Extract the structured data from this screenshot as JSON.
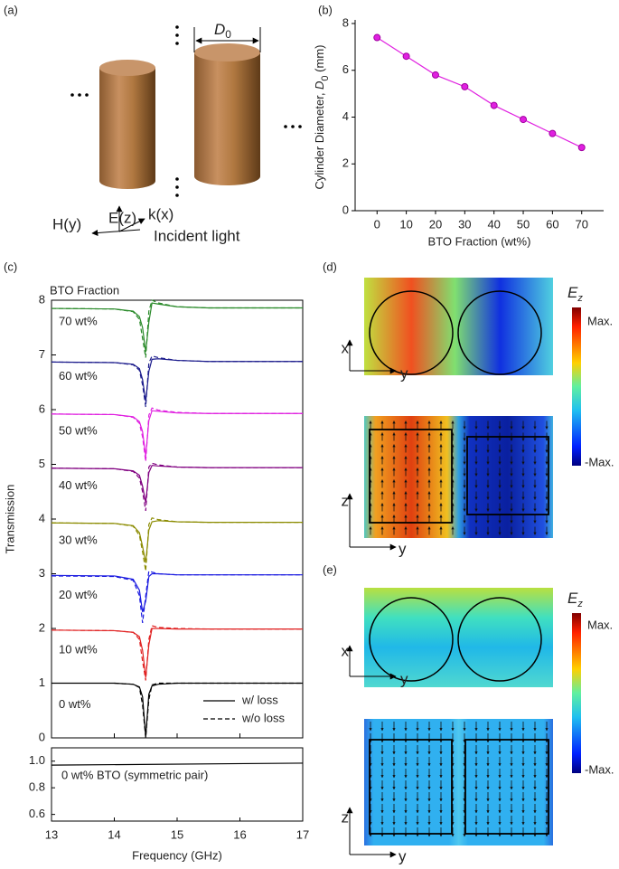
{
  "panel_labels": [
    "(a)",
    "(b)",
    "(c)",
    "(d)",
    "(e)"
  ],
  "diagram": {
    "diameter": [
      "D",
      "0"
    ],
    "e_field": "E(z)",
    "k_vector": "k(x)",
    "h_field": "H(y)",
    "caption": "Incident light"
  },
  "field_maps": {
    "colorbar_title": [
      "E",
      "z"
    ],
    "max": "Max.",
    "min": "-Max.",
    "axes_top": [
      "x",
      "y"
    ],
    "axes_bottom": [
      "z",
      "y"
    ]
  },
  "chart_data": [
    {
      "type": "line",
      "x": [
        0,
        10,
        20,
        30,
        40,
        50,
        60,
        70
      ],
      "values": [
        7.4,
        6.6,
        5.8,
        5.3,
        4.5,
        3.9,
        3.3,
        2.7
      ],
      "color": "#e020e0",
      "markers": true,
      "xlim": [
        -7.5,
        77.5
      ],
      "xticks": [
        0,
        10,
        20,
        30,
        40,
        50,
        60,
        70
      ],
      "ylim": [
        0,
        8
      ],
      "yticks": [
        0,
        2,
        4,
        6,
        8
      ],
      "xlabel": "BTO Fraction (wt%)",
      "ylabel": [
        "Cylinder Diameter, ",
        "D",
        "0",
        " (mm)"
      ]
    },
    {
      "type": "line",
      "legend_title": "BTO Fraction",
      "legend": [
        "w/ loss",
        "w/o loss"
      ],
      "ylabel": "Transmission",
      "x": [
        13,
        14,
        14.3,
        14.4,
        14.45,
        14.5,
        14.55,
        14.6,
        14.7,
        15,
        15.5,
        17
      ],
      "xlim": [
        13,
        17
      ],
      "xticks": [
        13,
        14,
        15,
        16,
        17
      ],
      "ylim": [
        0,
        8
      ],
      "yticks": [
        0,
        1,
        2,
        3,
        4,
        5,
        6,
        7,
        8
      ],
      "series": [
        {
          "name": "0 wt%",
          "color": "#000000",
          "values": [
            1,
            1,
            0.98,
            0.93,
            0.75,
            0.02,
            0.8,
            0.95,
            0.98,
            1,
            1,
            1
          ],
          "values_no_loss": [
            null,
            1,
            0.98,
            0.92,
            0.6,
            0,
            0.7,
            0.97,
            1,
            1,
            1,
            1
          ]
        },
        {
          "name": "10 wt%",
          "color": "#e02020",
          "values": [
            1.97,
            1.96,
            1.93,
            1.85,
            1.6,
            1.1,
            1.7,
            2.0,
            2.0,
            1.99,
            1.99,
            1.99
          ],
          "values_no_loss": [
            1.97,
            1.96,
            1.93,
            1.8,
            1.4,
            1.05,
            1.8,
            2.05,
            2.02,
            2.0,
            1.99,
            1.99
          ]
        },
        {
          "name": "20 wt%",
          "color": "#1a1ae0",
          "values": [
            2.97,
            2.96,
            2.9,
            2.7,
            2.3,
            2.5,
            2.95,
            3.0,
            3.0,
            2.98,
            2.98,
            2.98
          ],
          "values_no_loss": [
            2.96,
            2.95,
            2.88,
            2.6,
            2.1,
            2.6,
            3.05,
            3.03,
            3.0,
            2.98,
            2.98,
            2.98
          ]
        },
        {
          "name": "30 wt%",
          "color": "#8b8b00",
          "values": [
            3.93,
            3.92,
            3.88,
            3.75,
            3.5,
            3.2,
            3.8,
            3.95,
            3.97,
            3.95,
            3.94,
            3.94
          ],
          "values_no_loss": [
            3.93,
            3.92,
            3.87,
            3.7,
            3.4,
            3.05,
            3.9,
            4.02,
            3.99,
            3.95,
            3.94,
            3.94
          ]
        },
        {
          "name": "40 wt%",
          "color": "#800080",
          "values": [
            4.93,
            4.92,
            4.88,
            4.8,
            4.6,
            4.3,
            4.85,
            4.98,
            4.97,
            4.95,
            4.94,
            4.94
          ],
          "values_no_loss": [
            4.93,
            4.92,
            4.87,
            4.75,
            4.5,
            4.15,
            4.95,
            5.02,
            4.99,
            4.95,
            4.94,
            4.94
          ]
        },
        {
          "name": "50 wt%",
          "color": "#e020e0",
          "values": [
            5.92,
            5.91,
            5.87,
            5.78,
            5.6,
            5.15,
            5.8,
            5.98,
            5.97,
            5.94,
            5.93,
            5.93
          ],
          "values_no_loss": [
            5.92,
            5.91,
            5.86,
            5.75,
            5.5,
            5.05,
            5.9,
            6.03,
            5.99,
            5.95,
            5.93,
            5.93
          ]
        },
        {
          "name": "60 wt%",
          "color": "#1c1c8c",
          "values": [
            6.87,
            6.86,
            6.83,
            6.75,
            6.55,
            6.15,
            6.7,
            6.92,
            6.93,
            6.9,
            6.88,
            6.88
          ],
          "values_no_loss": [
            6.87,
            6.86,
            6.82,
            6.72,
            6.45,
            6.05,
            6.85,
            6.98,
            6.95,
            6.9,
            6.88,
            6.88
          ]
        },
        {
          "name": "70 wt%",
          "color": "#2a8a2a",
          "values": [
            7.85,
            7.84,
            7.8,
            7.7,
            7.5,
            7.05,
            7.6,
            7.95,
            7.93,
            7.88,
            7.86,
            7.86
          ],
          "values_no_loss": [
            7.85,
            7.84,
            7.79,
            7.65,
            7.3,
            6.95,
            7.8,
            8.0,
            7.95,
            7.88,
            7.86,
            7.86
          ]
        }
      ]
    },
    {
      "type": "line",
      "annotation": "0 wt% BTO (symmetric pair)",
      "x": [
        13,
        17
      ],
      "values": [
        0.97,
        0.985
      ],
      "color": "#000000",
      "xlim": [
        13,
        17
      ],
      "xticks": [
        13,
        14,
        15,
        16,
        17
      ],
      "ylim": [
        0.55,
        1.1
      ],
      "yticks": [
        0.6,
        0.8,
        {
          "value": 1,
          "label": "1.0"
        }
      ],
      "xlabel": "Frequency (GHz)"
    }
  ]
}
